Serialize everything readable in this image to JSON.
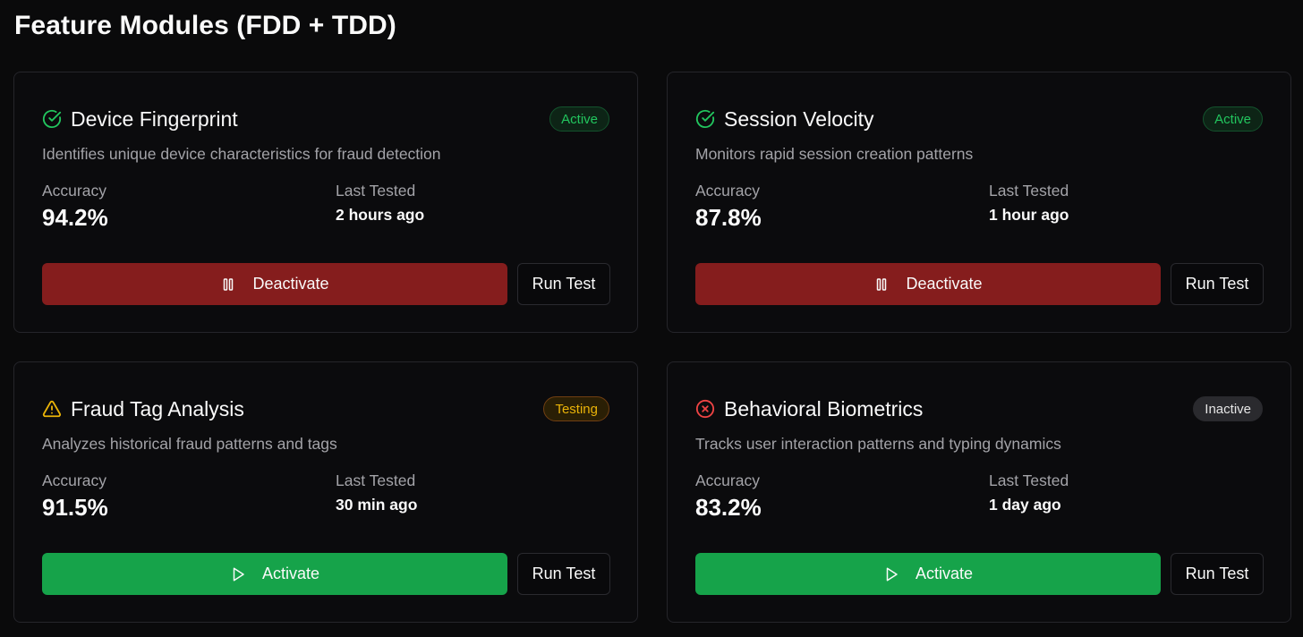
{
  "page": {
    "title": "Feature Modules (FDD + TDD)"
  },
  "modules": [
    {
      "title": "Device Fingerprint",
      "status": "Active",
      "status_icon": "check-circle-icon",
      "description": "Identifies unique device characteristics for fraud detection",
      "accuracy_label": "Accuracy",
      "accuracy": "94.2%",
      "last_tested_label": "Last Tested",
      "last_tested": "2 hours ago",
      "toggle_label": "Deactivate",
      "toggle_icon": "pause-icon",
      "run_test_label": "Run Test"
    },
    {
      "title": "Session Velocity",
      "status": "Active",
      "status_icon": "check-circle-icon",
      "description": "Monitors rapid session creation patterns",
      "accuracy_label": "Accuracy",
      "accuracy": "87.8%",
      "last_tested_label": "Last Tested",
      "last_tested": "1 hour ago",
      "toggle_label": "Deactivate",
      "toggle_icon": "pause-icon",
      "run_test_label": "Run Test"
    },
    {
      "title": "Fraud Tag Analysis",
      "status": "Testing",
      "status_icon": "warning-triangle-icon",
      "description": "Analyzes historical fraud patterns and tags",
      "accuracy_label": "Accuracy",
      "accuracy": "91.5%",
      "last_tested_label": "Last Tested",
      "last_tested": "30 min ago",
      "toggle_label": "Activate",
      "toggle_icon": "play-icon",
      "run_test_label": "Run Test"
    },
    {
      "title": "Behavioral Biometrics",
      "status": "Inactive",
      "status_icon": "x-circle-icon",
      "description": "Tracks user interaction patterns and typing dynamics",
      "accuracy_label": "Accuracy",
      "accuracy": "83.2%",
      "last_tested_label": "Last Tested",
      "last_tested": "1 day ago",
      "toggle_label": "Activate",
      "toggle_icon": "play-icon",
      "run_test_label": "Run Test"
    }
  ],
  "colors": {
    "background": "#0a0a0b",
    "card": "#0b0b0d",
    "active_green": "#22c55e",
    "testing_yellow": "#eab308",
    "inactive_red": "#ef4444",
    "deactivate_button": "#851d1d",
    "activate_button": "#16a34a"
  }
}
